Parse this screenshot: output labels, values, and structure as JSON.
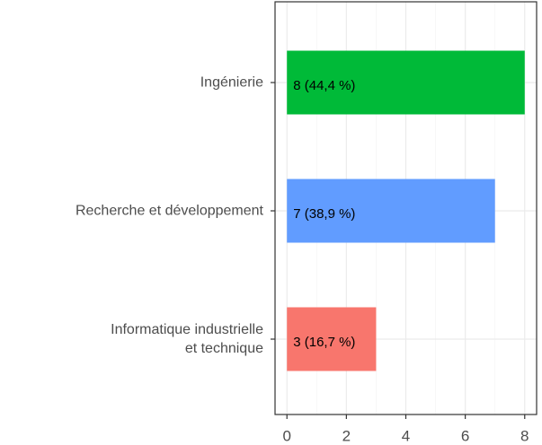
{
  "chart_data": {
    "type": "bar",
    "orientation": "horizontal",
    "categories": [
      "Ingénierie",
      "Recherche et développement",
      "Informatique industrielle\net technique"
    ],
    "values": [
      8,
      7,
      3
    ],
    "value_labels": [
      "8 (44,4 %)",
      "7 (38,9 %)",
      "3 (16,7 %)"
    ],
    "colors": [
      "#00BA38",
      "#619CFF",
      "#F8766D"
    ],
    "xlim": [
      -0.4,
      8.4
    ],
    "xticks": [
      0,
      2,
      4,
      6,
      8
    ],
    "minor_xticks": [
      1,
      3,
      5,
      7
    ],
    "grid": true
  }
}
